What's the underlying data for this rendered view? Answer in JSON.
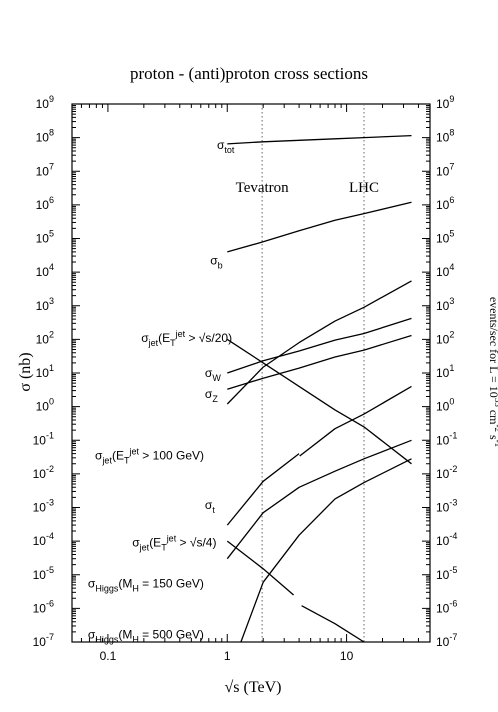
{
  "chart_data": {
    "type": "line",
    "title": "proton - (anti)proton cross sections",
    "xlabel": "√s   (TeV)",
    "ylabel": "σ  (nb)",
    "y2label": "events/sec  for  L = 10",
    "y2label_exp1": "33",
    "y2label_mid": " cm",
    "y2label_exp2": "-2",
    "y2label_s": " s",
    "y2label_exp3": "-1",
    "x_scale": "log",
    "y_scale": "log",
    "xlim": [
      0.05,
      50
    ],
    "ylim": [
      1e-07,
      1000000000.0
    ],
    "x_ticks": [
      {
        "value": 0.1,
        "label": "0.1"
      },
      {
        "value": 1,
        "label": "1"
      },
      {
        "value": 10,
        "label": "10"
      }
    ],
    "y_ticks": [
      {
        "exp": 9
      },
      {
        "exp": 8
      },
      {
        "exp": 7
      },
      {
        "exp": 6
      },
      {
        "exp": 5
      },
      {
        "exp": 4
      },
      {
        "exp": 3
      },
      {
        "exp": 2
      },
      {
        "exp": 1
      },
      {
        "exp": 0
      },
      {
        "exp": -1
      },
      {
        "exp": -2
      },
      {
        "exp": -3
      },
      {
        "exp": -4
      },
      {
        "exp": -5
      },
      {
        "exp": -6
      },
      {
        "exp": -7
      }
    ],
    "y2_ticks": [
      {
        "exp": 9
      },
      {
        "exp": 8
      },
      {
        "exp": 7
      },
      {
        "exp": 6
      },
      {
        "exp": 5
      },
      {
        "exp": 4
      },
      {
        "exp": 3
      },
      {
        "exp": 2
      },
      {
        "exp": 1
      },
      {
        "exp": 0
      },
      {
        "exp": -1
      },
      {
        "exp": -2
      },
      {
        "exp": -3
      },
      {
        "exp": -4
      },
      {
        "exp": -5
      },
      {
        "exp": -6
      },
      {
        "exp": -7
      }
    ],
    "tick_base": "10",
    "vlines": [
      {
        "x": 1.96,
        "label": "Tevatron"
      },
      {
        "x": 14,
        "label": "LHC"
      }
    ],
    "series": [
      {
        "id": "tot",
        "x": [
          1,
          2,
          4,
          8,
          14,
          35
        ],
        "y": [
          65000000.0,
          75000000.0,
          83000000.0,
          92000000.0,
          100000000.0,
          115000000.0
        ]
      },
      {
        "id": "b",
        "x": [
          1,
          2,
          4,
          8,
          14,
          35
        ],
        "y": [
          40000.0,
          80000.0,
          170000.0,
          350000.0,
          550000.0,
          1200000.0
        ]
      },
      {
        "id": "jet20",
        "x": [
          1,
          2,
          4,
          8,
          14,
          35
        ],
        "y": [
          1.2,
          15,
          80,
          350,
          900,
          5500
        ]
      },
      {
        "id": "W",
        "x": [
          1,
          2,
          4,
          8,
          14,
          35
        ],
        "y": [
          10,
          23,
          45,
          95,
          150,
          420
        ]
      },
      {
        "id": "Z",
        "x": [
          1,
          2,
          4,
          8,
          14,
          35
        ],
        "y": [
          3.3,
          7,
          14,
          30,
          48,
          130
        ]
      },
      {
        "id": "jetsqrt20",
        "x": [
          1,
          2,
          4,
          8,
          14,
          35
        ],
        "y": [
          100,
          20,
          4,
          0.8,
          0.25,
          0.02
        ]
      },
      {
        "id": "jet100",
        "x": [
          1,
          2,
          4
        ],
        "y": [
          0.0003,
          0.006,
          0.04
        ],
        "x2": [
          4.05,
          8,
          14,
          35
        ],
        "y2": [
          0.034,
          0.22,
          0.6,
          4
        ]
      },
      {
        "id": "t",
        "x": [
          1,
          2,
          4,
          8,
          14,
          35
        ],
        "y": [
          3e-05,
          0.0007,
          0.004,
          0.012,
          0.028,
          0.1
        ]
      },
      {
        "id": "jets4",
        "x": [
          1,
          2,
          3.6
        ],
        "y": [
          0.0001,
          1.5e-05,
          2.5e-06
        ],
        "x2": [
          4.2,
          8,
          14
        ],
        "y2": [
          1.2e-06,
          3.5e-07,
          1e-07
        ]
      },
      {
        "id": "h150",
        "x": [
          1.3,
          2,
          4,
          8,
          14,
          35
        ],
        "y": [
          1e-07,
          6e-06,
          0.00015,
          0.0018,
          0.0055,
          0.028
        ]
      }
    ],
    "labels": [
      {
        "id": "tot",
        "sym": "σ",
        "sub": "tot",
        "x": 0.82,
        "y": 60000000.0
      },
      {
        "id": "b",
        "sym": "σ",
        "sub": "b",
        "x": 0.72,
        "y": 22000.0
      },
      {
        "id": "jet20",
        "sym": "σ",
        "sub": "jet",
        "p1": "(E",
        "sub2": "T",
        "sup": "jet",
        "p2": " > 100 GeV)",
        "x": 0.078,
        "y": 0.035
      },
      {
        "id": "W",
        "sym": "σ",
        "sub": "W",
        "x": 0.65,
        "y": 10
      },
      {
        "id": "Z",
        "sym": "σ",
        "sub": "Z",
        "x": 0.65,
        "y": 2.4
      },
      {
        "id": "jetsqrt20",
        "sym": "σ",
        "sub": "jet",
        "p1": "(E",
        "sub2": "T",
        "sup": "jet",
        "p2": " > √s/20)",
        "x": 0.19,
        "y": 110
      },
      {
        "id": "t",
        "sym": "σ",
        "sub": "t",
        "x": 0.65,
        "y": 0.0012
      },
      {
        "id": "jets4",
        "sym": "σ",
        "sub": "jet",
        "p1": "(E",
        "sub2": "T",
        "sup": "jet",
        "p2": " > √s/4)",
        "x": 0.16,
        "y": 9e-05
      },
      {
        "id": "h150",
        "sym": "σ",
        "sub": "Higgs",
        "p1": "(M",
        "sub2": "H",
        "p2": " = 150 GeV)",
        "x": 0.068,
        "y": 5.5e-06
      },
      {
        "id": "h500",
        "sym": "σ",
        "sub": "Higgs",
        "p1": "(M",
        "sub2": "H",
        "p2": " = 500 GeV)",
        "x": 0.068,
        "y": 1.7e-07
      }
    ]
  }
}
